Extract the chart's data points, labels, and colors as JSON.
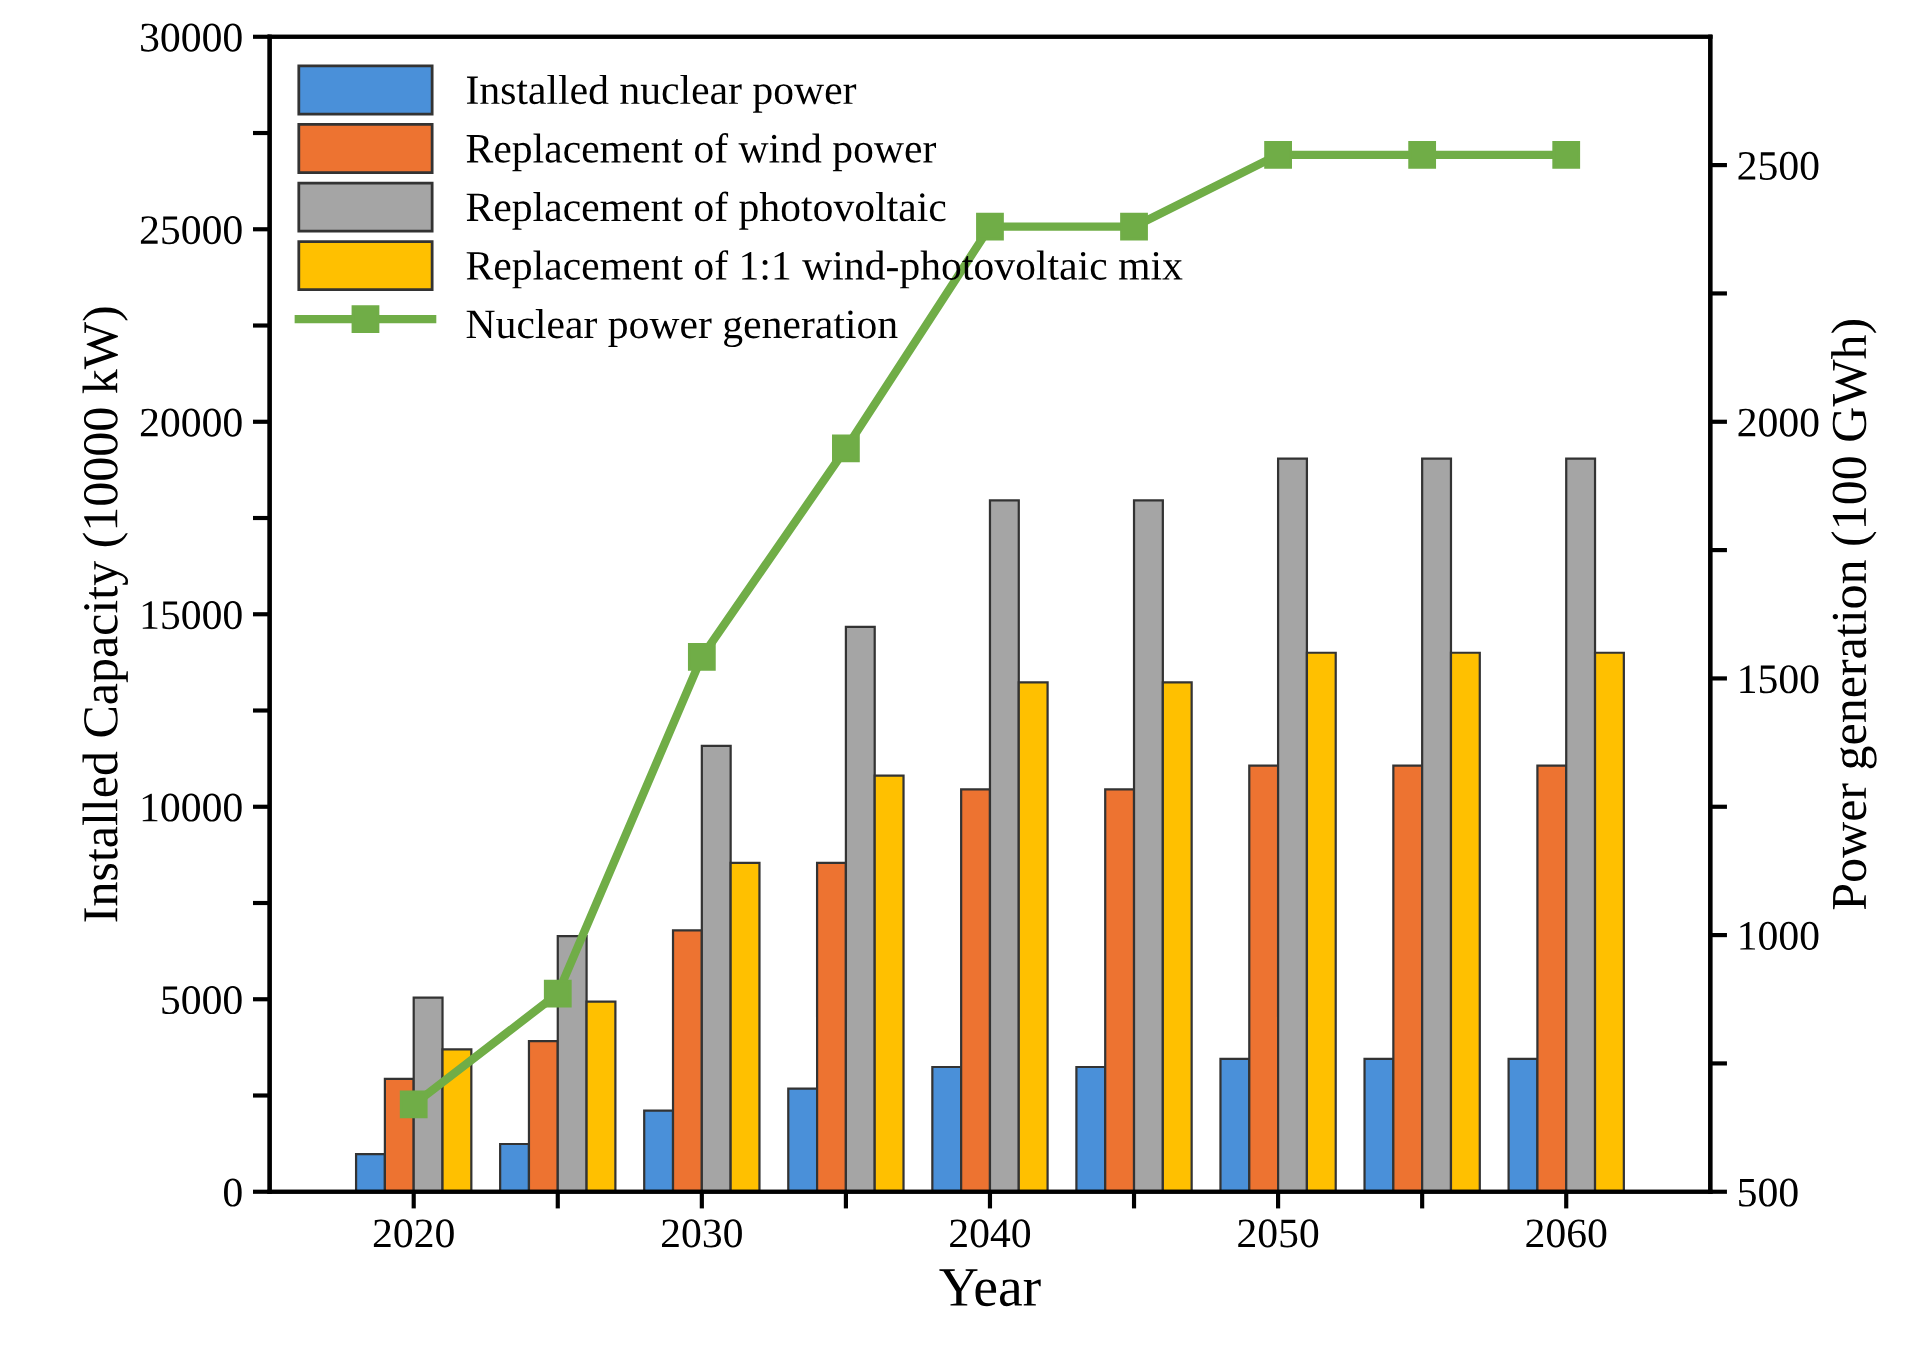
{
  "chart_data": {
    "type": "bar",
    "xlabel": "Year",
    "ylabel": "Installed Capacity (10000 kW)",
    "y2label": "Power generation (100 GWh)",
    "x": [
      2020,
      2025,
      2030,
      2035,
      2040,
      2045,
      2050,
      2055,
      2060
    ],
    "series": [
      {
        "name": "Installed nuclear power",
        "color": "#4a90d9",
        "values": [
          980,
          1240,
          2110,
          2680,
          3240,
          3240,
          3450,
          3450,
          3450
        ]
      },
      {
        "name": "Replacement of wind power",
        "color": "#ed7331",
        "values": [
          2930,
          3910,
          6790,
          8540,
          10450,
          10450,
          11070,
          11070,
          11070
        ]
      },
      {
        "name": "Replacement of photovoltaic",
        "color": "#a5a5a5",
        "values": [
          5040,
          6640,
          11580,
          14670,
          17960,
          17960,
          19040,
          19040,
          19040
        ]
      },
      {
        "name": "Replacement of 1:1 wind-photovoltaic mix",
        "color": "#ffc000",
        "values": [
          3700,
          4940,
          8540,
          10810,
          13230,
          13230,
          14000,
          14000,
          14000
        ]
      },
      {
        "name": "Nuclear power generation",
        "type": "line",
        "axis": "y2",
        "color": "#70ad47",
        "marker": "square",
        "values": [
          670,
          886,
          1542,
          1948,
          2380,
          2380,
          2520,
          2520,
          2520
        ]
      }
    ],
    "xlim": [
      2015,
      2065
    ],
    "xticks": [
      2020,
      {
        "value": 2025,
        "label": null
      },
      2030,
      {
        "value": 2035,
        "label": null
      },
      2040,
      {
        "value": 2045,
        "label": null
      },
      2050,
      {
        "value": 2055,
        "label": null
      },
      2060
    ],
    "ylim": [
      0,
      30000
    ],
    "yticks": [
      0,
      {
        "value": 2500,
        "label": null
      },
      5000,
      {
        "value": 7500,
        "label": null
      },
      10000,
      {
        "value": 12500,
        "label": null
      },
      15000,
      {
        "value": 17500,
        "label": null
      },
      20000,
      {
        "value": 22500,
        "label": null
      },
      25000,
      {
        "value": 27500,
        "label": null
      },
      30000
    ],
    "y2lim": [
      500,
      2750
    ],
    "y2ticks": [
      500,
      {
        "value": 750,
        "label": null
      },
      1000,
      {
        "value": 1250,
        "label": null
      },
      1500,
      {
        "value": 1750,
        "label": null
      },
      2000,
      {
        "value": 2250,
        "label": null
      },
      2500
    ],
    "legend": "top left",
    "grid": false
  }
}
